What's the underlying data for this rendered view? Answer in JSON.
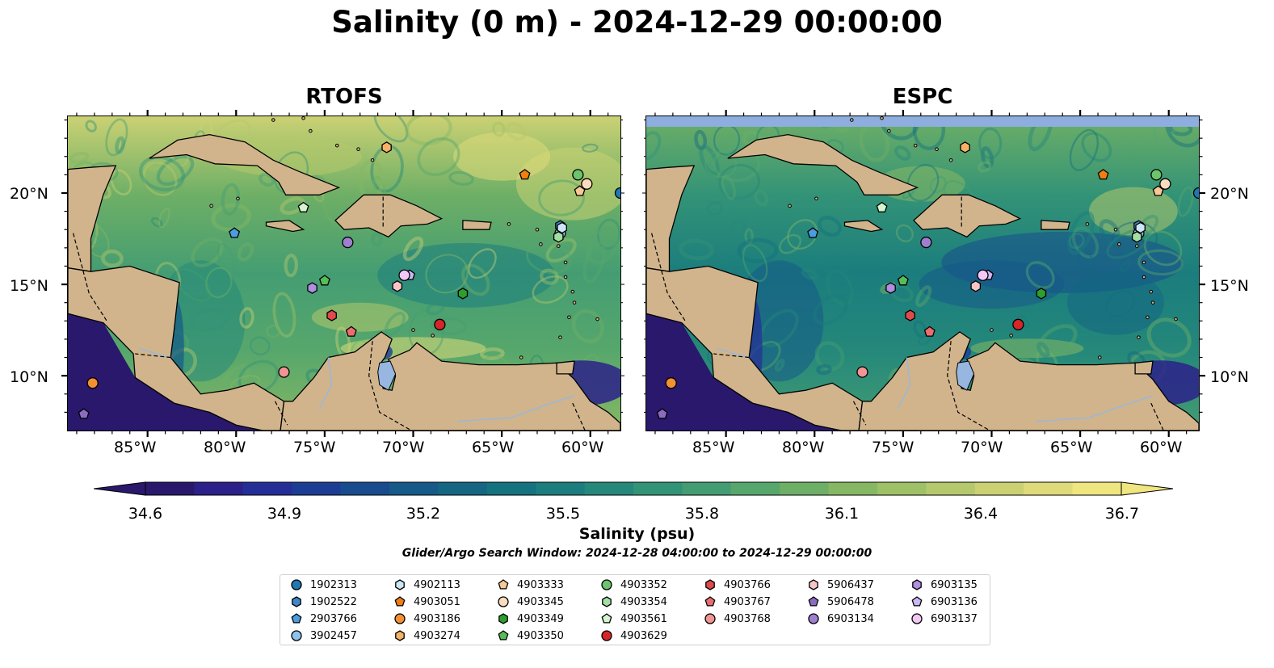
{
  "title": "Salinity (0 m) - 2024-12-29 00:00:00",
  "panels": [
    {
      "title": "RTOFS"
    },
    {
      "title": "ESPC"
    }
  ],
  "map": {
    "lon_range": [
      -89.5,
      -58.3
    ],
    "lat_range": [
      7.0,
      24.2
    ],
    "lon_ticks": [
      "85°W",
      "80°W",
      "75°W",
      "70°W",
      "65°W",
      "60°W"
    ],
    "lat_ticks": [
      "20°N",
      "15°N",
      "10°N"
    ],
    "land_color": "#d1b48c",
    "coast_color": "#000000",
    "river_color": "#9ab8d8"
  },
  "colorbar": {
    "label": "Salinity (psu)",
    "min": 34.6,
    "max": 36.7,
    "ticks": [
      "34.6",
      "34.9",
      "35.2",
      "35.5",
      "35.8",
      "36.1",
      "36.4",
      "36.7"
    ],
    "extend": "both",
    "colormap": "haline",
    "colors": [
      "#29186b",
      "#2c2189",
      "#252e97",
      "#1d3d95",
      "#184c8e",
      "#155a88",
      "#146683",
      "#15727f",
      "#1b7d7d",
      "#25887a",
      "#339377",
      "#449d72",
      "#57a76c",
      "#6eaf66",
      "#86b863",
      "#9ec066",
      "#b5c86c",
      "#cbd173",
      "#dfdb7a",
      "#f0e67f"
    ]
  },
  "search_window": "Glider/Argo Search Window: 2024-12-28 04:00:00 to 2024-12-29 00:00:00",
  "legend": {
    "columns": [
      [
        {
          "id": "1902313",
          "marker": "circle",
          "color": "#1f77b4"
        },
        {
          "id": "1902522",
          "marker": "hexagon",
          "color": "#3f87c6"
        },
        {
          "id": "2903766",
          "marker": "pentagon",
          "color": "#4a9de0"
        },
        {
          "id": "3902457",
          "marker": "circle",
          "color": "#8ec2ec"
        }
      ],
      [
        {
          "id": "4902113",
          "marker": "hexagon",
          "color": "#cde6f7"
        },
        {
          "id": "4903051",
          "marker": "pentagon",
          "color": "#f07f10"
        },
        {
          "id": "4903186",
          "marker": "circle",
          "color": "#f39034"
        },
        {
          "id": "4903274",
          "marker": "hexagon",
          "color": "#f7b266"
        }
      ],
      [
        {
          "id": "4903333",
          "marker": "pentagon",
          "color": "#f8c896"
        },
        {
          "id": "4903345",
          "marker": "circle",
          "color": "#fbdcbf"
        },
        {
          "id": "4903349",
          "marker": "hexagon",
          "color": "#2ca02c"
        },
        {
          "id": "4903350",
          "marker": "pentagon",
          "color": "#57bd57"
        }
      ],
      [
        {
          "id": "4903352",
          "marker": "circle",
          "color": "#6cc46c"
        },
        {
          "id": "4903354",
          "marker": "hexagon",
          "color": "#a3dea3"
        },
        {
          "id": "4903561",
          "marker": "pentagon",
          "color": "#d4f5d0"
        },
        {
          "id": "4903629",
          "marker": "circle",
          "color": "#d62728"
        }
      ],
      [
        {
          "id": "4903766",
          "marker": "hexagon",
          "color": "#e04a4b"
        },
        {
          "id": "4903767",
          "marker": "pentagon",
          "color": "#ea6e70"
        },
        {
          "id": "4903768",
          "marker": "circle",
          "color": "#f09494"
        }
      ],
      [
        {
          "id": "5906437",
          "marker": "hexagon",
          "color": "#f8c4c4"
        },
        {
          "id": "5906478",
          "marker": "pentagon",
          "color": "#8c6cbf"
        },
        {
          "id": "6903134",
          "marker": "circle",
          "color": "#a17fd0"
        }
      ],
      [
        {
          "id": "6903135",
          "marker": "hexagon",
          "color": "#b08ee0"
        },
        {
          "id": "6903136",
          "marker": "pentagon",
          "color": "#ccb8f2"
        },
        {
          "id": "6903137",
          "marker": "circle",
          "color": "#f2c8f5"
        }
      ]
    ]
  },
  "floats": [
    {
      "id": "1902313",
      "lon": -58.3,
      "lat": 20.0
    },
    {
      "id": "1902522",
      "lon": -61.7,
      "lat": 18.2
    },
    {
      "id": "2903766",
      "lon": -80.1,
      "lat": 17.8
    },
    {
      "id": "3902457",
      "lon": -61.7,
      "lat": 17.8
    },
    {
      "id": "4902113",
      "lon": -61.6,
      "lat": 18.1
    },
    {
      "id": "4903051",
      "lon": -63.7,
      "lat": 21.0
    },
    {
      "id": "4903186",
      "lon": -88.1,
      "lat": 9.6
    },
    {
      "id": "4903274",
      "lon": -71.5,
      "lat": 22.5
    },
    {
      "id": "4903333",
      "lon": -60.6,
      "lat": 20.1
    },
    {
      "id": "4903345",
      "lon": -60.2,
      "lat": 20.5
    },
    {
      "id": "4903349",
      "lon": -67.2,
      "lat": 14.5
    },
    {
      "id": "4903350",
      "lon": -75.0,
      "lat": 15.2
    },
    {
      "id": "4903352",
      "lon": -60.7,
      "lat": 21.0
    },
    {
      "id": "4903354",
      "lon": -61.8,
      "lat": 17.6
    },
    {
      "id": "4903561",
      "lon": -76.2,
      "lat": 19.2
    },
    {
      "id": "4903629",
      "lon": -68.5,
      "lat": 12.8
    },
    {
      "id": "4903766",
      "lon": -74.6,
      "lat": 13.3
    },
    {
      "id": "4903767",
      "lon": -73.5,
      "lat": 12.4
    },
    {
      "id": "4903768",
      "lon": -77.3,
      "lat": 10.2
    },
    {
      "id": "5906437",
      "lon": -70.9,
      "lat": 14.9
    },
    {
      "id": "5906478",
      "lon": -88.6,
      "lat": 7.9
    },
    {
      "id": "6903134",
      "lon": -73.7,
      "lat": 17.3
    },
    {
      "id": "6903135",
      "lon": -75.7,
      "lat": 14.8
    },
    {
      "id": "6903136",
      "lon": -70.2,
      "lat": 15.5
    },
    {
      "id": "6903137",
      "lon": -70.5,
      "lat": 15.5
    }
  ]
}
